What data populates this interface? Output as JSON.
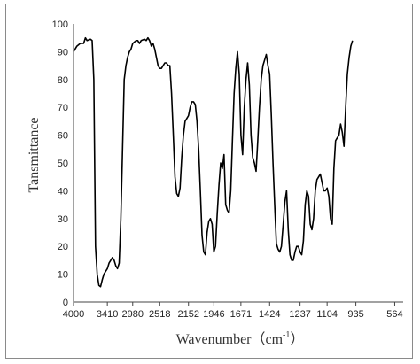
{
  "chart_data": {
    "type": "line",
    "title": "",
    "xlabel": "Wavenumber（cm",
    "xlabel_sup": "-1",
    "xlabel_tail": "）",
    "ylabel": "Tansmittance",
    "ylim": [
      0,
      100
    ],
    "yticks": [
      0,
      10,
      20,
      30,
      40,
      50,
      60,
      70,
      80,
      90,
      100
    ],
    "x_tick_labels": [
      "4000",
      "3410",
      "2980",
      "2518",
      "2152",
      "1946",
      "1671",
      "1424",
      "1237",
      "1104",
      "935",
      "564"
    ],
    "x_tick_index": [
      0,
      20,
      35,
      51,
      68,
      83,
      99,
      116,
      134,
      150,
      167,
      190
    ],
    "index_range": [
      0,
      195
    ],
    "grid": false,
    "legend": "none",
    "line_color": "#000000",
    "series": [
      {
        "values": [
          [
            0,
            90
          ],
          [
            2,
            92
          ],
          [
            4,
            93
          ],
          [
            6,
            93
          ],
          [
            7,
            95
          ],
          [
            8,
            94
          ],
          [
            10,
            94.5
          ],
          [
            11,
            94
          ],
          [
            12,
            80
          ],
          [
            13,
            20
          ],
          [
            14,
            10
          ],
          [
            15,
            6
          ],
          [
            16,
            5.5
          ],
          [
            17,
            8
          ],
          [
            18,
            10
          ],
          [
            19,
            11
          ],
          [
            20,
            12
          ],
          [
            21,
            14
          ],
          [
            22,
            15
          ],
          [
            23,
            16
          ],
          [
            24,
            15
          ],
          [
            25,
            13
          ],
          [
            26,
            12
          ],
          [
            27,
            14
          ],
          [
            28,
            30
          ],
          [
            29,
            55
          ],
          [
            30,
            80
          ],
          [
            31,
            85
          ],
          [
            32,
            88
          ],
          [
            33,
            90
          ],
          [
            34,
            91
          ],
          [
            35,
            93
          ],
          [
            37,
            94
          ],
          [
            38,
            94
          ],
          [
            39,
            93
          ],
          [
            40,
            94
          ],
          [
            42,
            94.5
          ],
          [
            43,
            94
          ],
          [
            44,
            95
          ],
          [
            45,
            94
          ],
          [
            46,
            92
          ],
          [
            47,
            93
          ],
          [
            48,
            91
          ],
          [
            49,
            88
          ],
          [
            50,
            85
          ],
          [
            51,
            84
          ],
          [
            52,
            84
          ],
          [
            53,
            85
          ],
          [
            54,
            86
          ],
          [
            55,
            86
          ],
          [
            56,
            85
          ],
          [
            57,
            85
          ],
          [
            58,
            75
          ],
          [
            59,
            60
          ],
          [
            60,
            45
          ],
          [
            61,
            39
          ],
          [
            62,
            38
          ],
          [
            63,
            41
          ],
          [
            64,
            52
          ],
          [
            65,
            60
          ],
          [
            66,
            65
          ],
          [
            67,
            66
          ],
          [
            68,
            67
          ],
          [
            69,
            70
          ],
          [
            70,
            72
          ],
          [
            71,
            72
          ],
          [
            72,
            71
          ],
          [
            73,
            65
          ],
          [
            74,
            55
          ],
          [
            75,
            40
          ],
          [
            76,
            24
          ],
          [
            77,
            18
          ],
          [
            78,
            17
          ],
          [
            79,
            25
          ],
          [
            80,
            29
          ],
          [
            81,
            30
          ],
          [
            82,
            28
          ],
          [
            83,
            18
          ],
          [
            84,
            20
          ],
          [
            85,
            32
          ],
          [
            86,
            42
          ],
          [
            87,
            50
          ],
          [
            88,
            48
          ],
          [
            89,
            53
          ],
          [
            90,
            35
          ],
          [
            91,
            33
          ],
          [
            92,
            32
          ],
          [
            93,
            40
          ],
          [
            94,
            58
          ],
          [
            95,
            75
          ],
          [
            96,
            84
          ],
          [
            97,
            90
          ],
          [
            98,
            82
          ],
          [
            99,
            60
          ],
          [
            100,
            53
          ],
          [
            101,
            70
          ],
          [
            102,
            80
          ],
          [
            103,
            86
          ],
          [
            104,
            78
          ],
          [
            105,
            60
          ],
          [
            106,
            52
          ],
          [
            107,
            50
          ],
          [
            108,
            47
          ],
          [
            109,
            58
          ],
          [
            110,
            70
          ],
          [
            111,
            80
          ],
          [
            112,
            85
          ],
          [
            113,
            87
          ],
          [
            114,
            89
          ],
          [
            115,
            85
          ],
          [
            116,
            82
          ],
          [
            117,
            67
          ],
          [
            118,
            50
          ],
          [
            119,
            35
          ],
          [
            120,
            21
          ],
          [
            121,
            19
          ],
          [
            122,
            18
          ],
          [
            123,
            20
          ],
          [
            124,
            28
          ],
          [
            125,
            36
          ],
          [
            126,
            40
          ],
          [
            127,
            26
          ],
          [
            128,
            17
          ],
          [
            129,
            15
          ],
          [
            130,
            15
          ],
          [
            131,
            18
          ],
          [
            132,
            20
          ],
          [
            133,
            20
          ],
          [
            134,
            18
          ],
          [
            135,
            17
          ],
          [
            136,
            22
          ],
          [
            137,
            35
          ],
          [
            138,
            40
          ],
          [
            139,
            38
          ],
          [
            140,
            28
          ],
          [
            141,
            26
          ],
          [
            142,
            30
          ],
          [
            143,
            40
          ],
          [
            144,
            44
          ],
          [
            145,
            45
          ],
          [
            146,
            46
          ],
          [
            147,
            43
          ],
          [
            148,
            40
          ],
          [
            149,
            40
          ],
          [
            150,
            41
          ],
          [
            151,
            38
          ],
          [
            152,
            30
          ],
          [
            153,
            28
          ],
          [
            154,
            48
          ],
          [
            155,
            58
          ],
          [
            156,
            59
          ],
          [
            157,
            60
          ],
          [
            158,
            64
          ],
          [
            159,
            61
          ],
          [
            160,
            56
          ],
          [
            161,
            70
          ],
          [
            162,
            82
          ],
          [
            163,
            88
          ],
          [
            164,
            92
          ],
          [
            165,
            94
          ]
        ]
      }
    ]
  }
}
